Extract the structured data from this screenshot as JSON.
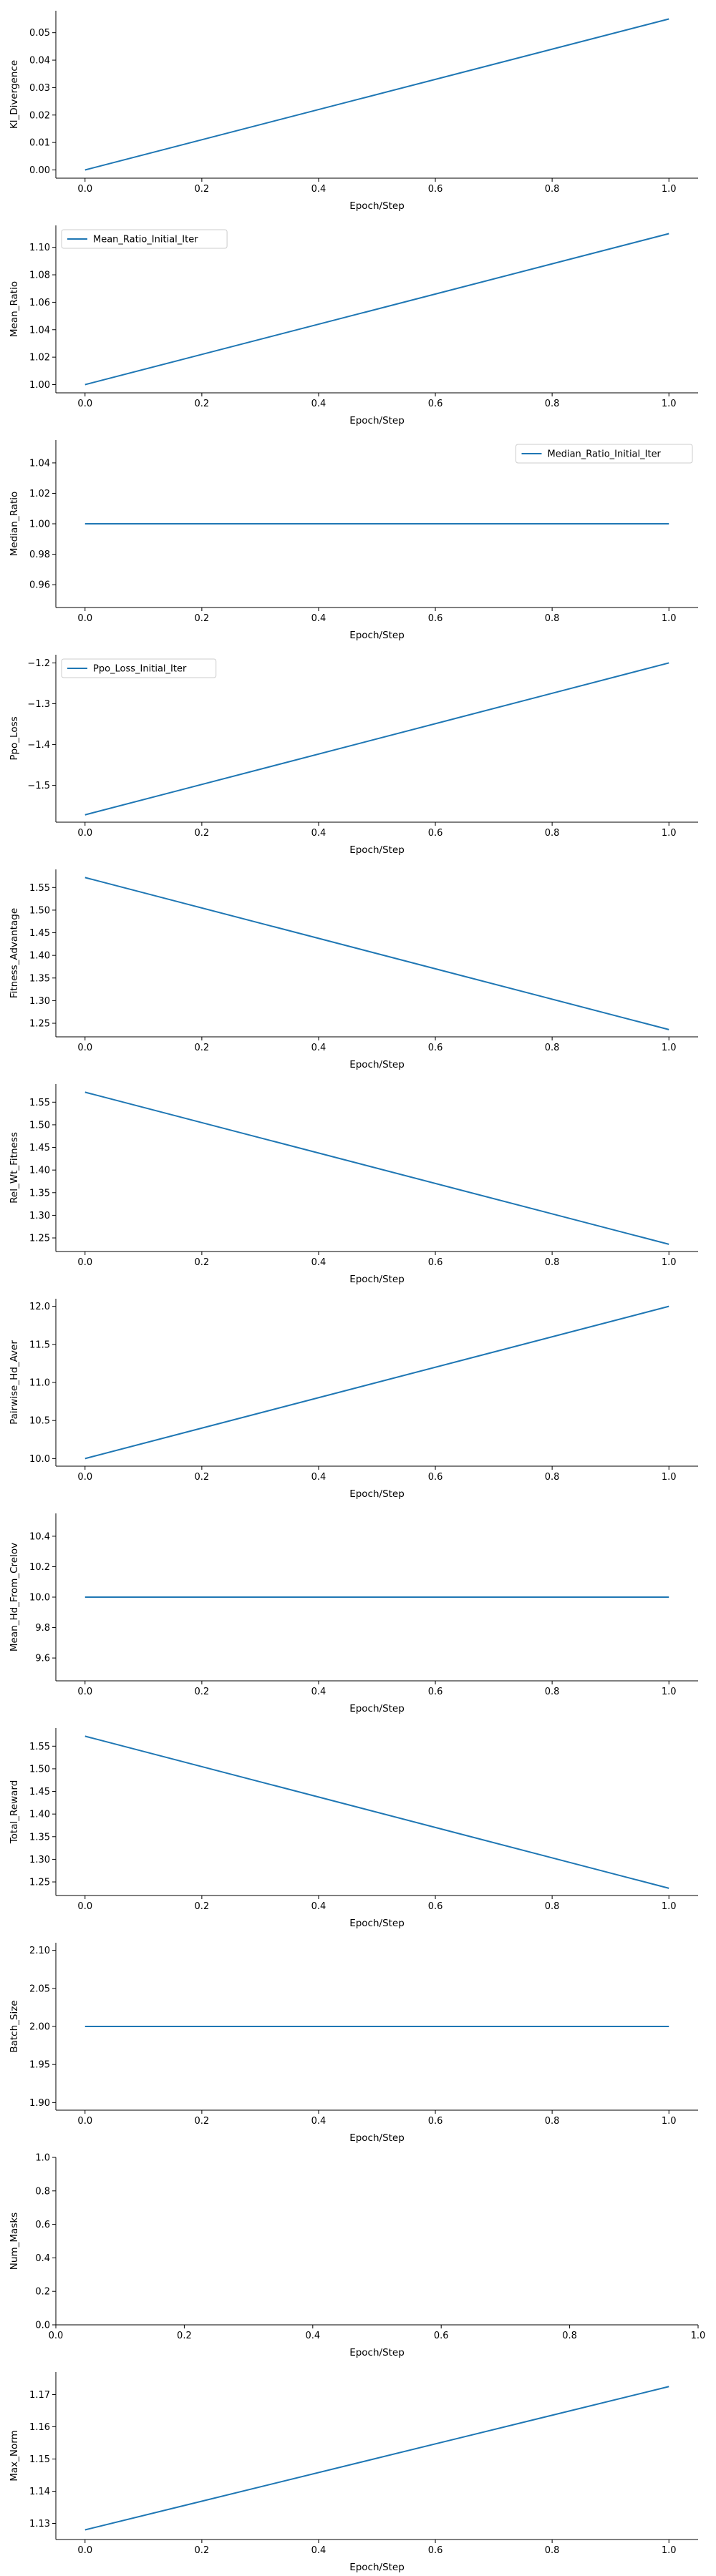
{
  "chart_data": [
    {
      "type": "line",
      "xlabel": "Epoch/Step",
      "ylabel": "Kl_Divergence",
      "xlim": [
        -0.05,
        1.05
      ],
      "ylim": [
        -0.003,
        0.058
      ],
      "xticks": [
        0.0,
        0.2,
        0.4,
        0.6,
        0.8,
        1.0
      ],
      "yticks": [
        0.0,
        0.01,
        0.02,
        0.03,
        0.04,
        0.05
      ],
      "ytick_labels": [
        "0.00",
        "0.01",
        "0.02",
        "0.03",
        "0.04",
        "0.05"
      ],
      "legend": null,
      "series": [
        {
          "x": [
            0,
            1
          ],
          "values": [
            0.0,
            0.055
          ]
        }
      ]
    },
    {
      "type": "line",
      "xlabel": "Epoch/Step",
      "ylabel": "Mean_Ratio",
      "xlim": [
        -0.05,
        1.05
      ],
      "ylim": [
        0.994,
        1.116
      ],
      "xticks": [
        0.0,
        0.2,
        0.4,
        0.6,
        0.8,
        1.0
      ],
      "yticks": [
        1.0,
        1.02,
        1.04,
        1.06,
        1.08,
        1.1
      ],
      "ytick_labels": [
        "1.00",
        "1.02",
        "1.04",
        "1.06",
        "1.08",
        "1.10"
      ],
      "legend": {
        "position": "top-left"
      },
      "series": [
        {
          "name": "Mean_Ratio_Initial_Iter",
          "x": [
            0,
            1
          ],
          "values": [
            1.0,
            1.11
          ]
        }
      ]
    },
    {
      "type": "line",
      "xlabel": "Epoch/Step",
      "ylabel": "Median_Ratio",
      "xlim": [
        -0.05,
        1.05
      ],
      "ylim": [
        0.945,
        1.055
      ],
      "xticks": [
        0.0,
        0.2,
        0.4,
        0.6,
        0.8,
        1.0
      ],
      "yticks": [
        0.96,
        0.98,
        1.0,
        1.02,
        1.04
      ],
      "ytick_labels": [
        "0.96",
        "0.98",
        "1.00",
        "1.02",
        "1.04"
      ],
      "legend": {
        "position": "top-right"
      },
      "series": [
        {
          "name": "Median_Ratio_Initial_Iter",
          "x": [
            0,
            1
          ],
          "values": [
            1.0,
            1.0
          ]
        }
      ]
    },
    {
      "type": "line",
      "xlabel": "Epoch/Step",
      "ylabel": "Ppo_Loss",
      "xlim": [
        -0.05,
        1.05
      ],
      "ylim": [
        -1.59,
        -1.18
      ],
      "xticks": [
        0.0,
        0.2,
        0.4,
        0.6,
        0.8,
        1.0
      ],
      "yticks": [
        -1.5,
        -1.4,
        -1.3,
        -1.2
      ],
      "ytick_labels": [
        "−1.5",
        "−1.4",
        "−1.3",
        "−1.2"
      ],
      "legend": {
        "position": "top-left"
      },
      "series": [
        {
          "name": "Ppo_Loss_Initial_Iter",
          "x": [
            0,
            1
          ],
          "values": [
            -1.572,
            -1.2
          ]
        }
      ]
    },
    {
      "type": "line",
      "xlabel": "Epoch/Step",
      "ylabel": "Fitness_Advantage",
      "xlim": [
        -0.05,
        1.05
      ],
      "ylim": [
        1.22,
        1.59
      ],
      "xticks": [
        0.0,
        0.2,
        0.4,
        0.6,
        0.8,
        1.0
      ],
      "yticks": [
        1.25,
        1.3,
        1.35,
        1.4,
        1.45,
        1.5,
        1.55
      ],
      "ytick_labels": [
        "1.25",
        "1.30",
        "1.35",
        "1.40",
        "1.45",
        "1.50",
        "1.55"
      ],
      "legend": null,
      "series": [
        {
          "x": [
            0,
            1
          ],
          "values": [
            1.572,
            1.236
          ]
        }
      ]
    },
    {
      "type": "line",
      "xlabel": "Epoch/Step",
      "ylabel": "Rel_Wt_Fitness",
      "xlim": [
        -0.05,
        1.05
      ],
      "ylim": [
        1.22,
        1.59
      ],
      "xticks": [
        0.0,
        0.2,
        0.4,
        0.6,
        0.8,
        1.0
      ],
      "yticks": [
        1.25,
        1.3,
        1.35,
        1.4,
        1.45,
        1.5,
        1.55
      ],
      "ytick_labels": [
        "1.25",
        "1.30",
        "1.35",
        "1.40",
        "1.45",
        "1.50",
        "1.55"
      ],
      "legend": null,
      "series": [
        {
          "x": [
            0,
            1
          ],
          "values": [
            1.572,
            1.236
          ]
        }
      ]
    },
    {
      "type": "line",
      "xlabel": "Epoch/Step",
      "ylabel": "Pairwise_Hd_Aver",
      "xlim": [
        -0.05,
        1.05
      ],
      "ylim": [
        9.9,
        12.1
      ],
      "xticks": [
        0.0,
        0.2,
        0.4,
        0.6,
        0.8,
        1.0
      ],
      "yticks": [
        10.0,
        10.5,
        11.0,
        11.5,
        12.0
      ],
      "ytick_labels": [
        "10.0",
        "10.5",
        "11.0",
        "11.5",
        "12.0"
      ],
      "legend": null,
      "series": [
        {
          "x": [
            0,
            1
          ],
          "values": [
            10.0,
            12.0
          ]
        }
      ]
    },
    {
      "type": "line",
      "xlabel": "Epoch/Step",
      "ylabel": "Mean_Hd_From_Crelov",
      "xlim": [
        -0.05,
        1.05
      ],
      "ylim": [
        9.45,
        10.55
      ],
      "xticks": [
        0.0,
        0.2,
        0.4,
        0.6,
        0.8,
        1.0
      ],
      "yticks": [
        9.6,
        9.8,
        10.0,
        10.2,
        10.4
      ],
      "ytick_labels": [
        "9.6",
        "9.8",
        "10.0",
        "10.2",
        "10.4"
      ],
      "legend": null,
      "series": [
        {
          "x": [
            0,
            1
          ],
          "values": [
            10.0,
            10.0
          ]
        }
      ]
    },
    {
      "type": "line",
      "xlabel": "Epoch/Step",
      "ylabel": "Total_Reward",
      "xlim": [
        -0.05,
        1.05
      ],
      "ylim": [
        1.22,
        1.59
      ],
      "xticks": [
        0.0,
        0.2,
        0.4,
        0.6,
        0.8,
        1.0
      ],
      "yticks": [
        1.25,
        1.3,
        1.35,
        1.4,
        1.45,
        1.5,
        1.55
      ],
      "ytick_labels": [
        "1.25",
        "1.30",
        "1.35",
        "1.40",
        "1.45",
        "1.50",
        "1.55"
      ],
      "legend": null,
      "series": [
        {
          "x": [
            0,
            1
          ],
          "values": [
            1.572,
            1.236
          ]
        }
      ]
    },
    {
      "type": "line",
      "xlabel": "Epoch/Step",
      "ylabel": "Batch_Size",
      "xlim": [
        -0.05,
        1.05
      ],
      "ylim": [
        1.89,
        2.11
      ],
      "xticks": [
        0.0,
        0.2,
        0.4,
        0.6,
        0.8,
        1.0
      ],
      "yticks": [
        1.9,
        1.95,
        2.0,
        2.05,
        2.1
      ],
      "ytick_labels": [
        "1.90",
        "1.95",
        "2.00",
        "2.05",
        "2.10"
      ],
      "legend": null,
      "series": [
        {
          "x": [
            0,
            1
          ],
          "values": [
            2.0,
            2.0
          ]
        }
      ]
    },
    {
      "type": "line",
      "xlabel": "Epoch/Step",
      "ylabel": "Num_Masks",
      "xlim": [
        0.0,
        1.0
      ],
      "ylim": [
        0.0,
        1.0
      ],
      "xticks": [
        0.0,
        0.2,
        0.4,
        0.6,
        0.8,
        1.0
      ],
      "yticks": [
        0.0,
        0.2,
        0.4,
        0.6,
        0.8,
        1.0
      ],
      "ytick_labels": [
        "0.0",
        "0.2",
        "0.4",
        "0.6",
        "0.8",
        "1.0"
      ],
      "legend": null,
      "series": []
    },
    {
      "type": "line",
      "xlabel": "Epoch/Step",
      "ylabel": "Max_Norm",
      "xlim": [
        -0.05,
        1.05
      ],
      "ylim": [
        1.125,
        1.177
      ],
      "xticks": [
        0.0,
        0.2,
        0.4,
        0.6,
        0.8,
        1.0
      ],
      "yticks": [
        1.13,
        1.14,
        1.15,
        1.16,
        1.17
      ],
      "ytick_labels": [
        "1.13",
        "1.14",
        "1.15",
        "1.16",
        "1.17"
      ],
      "legend": null,
      "series": [
        {
          "x": [
            0,
            1
          ],
          "values": [
            1.128,
            1.1725
          ]
        }
      ]
    }
  ],
  "style": {
    "line_color": "#1f77b4",
    "axis_color": "#000000",
    "legend_border": "#cccccc"
  }
}
